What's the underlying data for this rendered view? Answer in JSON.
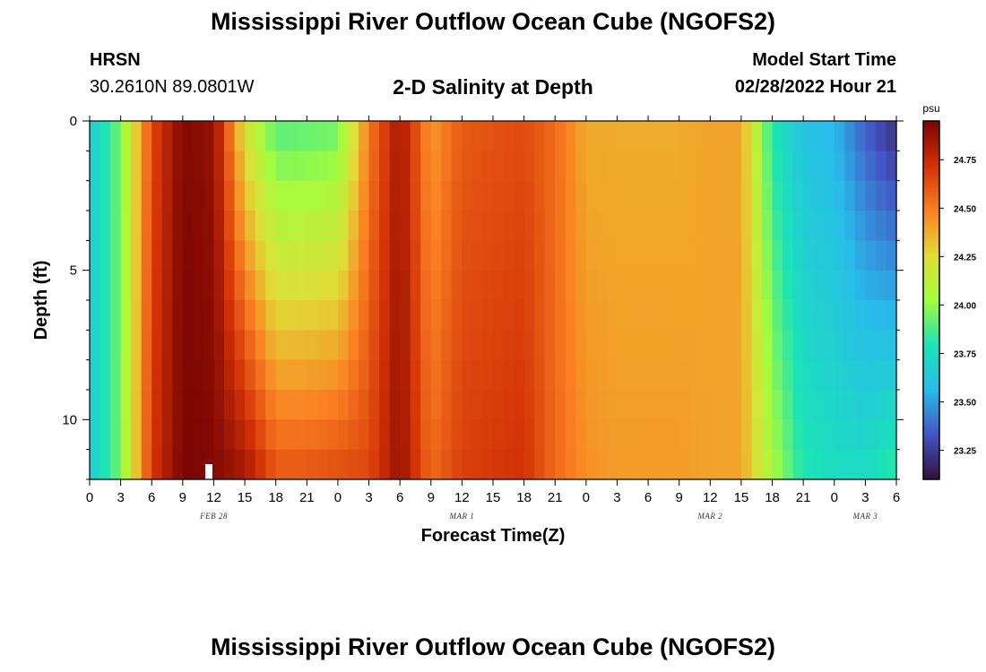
{
  "header": {
    "title": "Mississippi River Outflow Ocean Cube (NGOFS2)",
    "station_name": "HRSN",
    "station_coords": "30.2610N  89.0801W",
    "subtitle": "2-D Salinity at Depth",
    "model_start_label": "Model Start Time",
    "model_start_value": "02/28/2022 Hour 21"
  },
  "footer": {
    "title": "Mississippi River Outflow Ocean Cube (NGOFS2)"
  },
  "chart_data": {
    "type": "heatmap",
    "title": "2-D Salinity at Depth",
    "xlabel": "Forecast Time(Z)",
    "ylabel": "Depth (ft)",
    "x_tick_labels": [
      "0",
      "3",
      "6",
      "9",
      "12",
      "15",
      "18",
      "21",
      "0",
      "3",
      "6",
      "9",
      "12",
      "15",
      "18",
      "21",
      "0",
      "3",
      "6",
      "9",
      "12",
      "15",
      "18",
      "21",
      "0",
      "3",
      "6"
    ],
    "day_labels": [
      {
        "label": "FEB 28",
        "at_tick": 4
      },
      {
        "label": "MAR 1",
        "at_tick": 12
      },
      {
        "label": "MAR 2",
        "at_tick": 20
      },
      {
        "label": "MAR 3",
        "at_tick": 25
      }
    ],
    "x_range_hours": [
      0,
      78
    ],
    "y_tick_labels": [
      "0",
      "5",
      "10"
    ],
    "y_range_ft": [
      0,
      12
    ],
    "color_scale": {
      "unit": "psu",
      "min": 23.1,
      "max": 24.95,
      "ticks": [
        "23.25",
        "23.50",
        "23.75",
        "24.00",
        "24.25",
        "24.50",
        "24.75"
      ],
      "stops": [
        "#30123b",
        "#4454c4",
        "#28bceb",
        "#1ae4b6",
        "#a4fc3c",
        "#e1dd37",
        "#fb8022",
        "#d23105",
        "#7a0403"
      ]
    },
    "time_hours": [
      0,
      3,
      6,
      9,
      12,
      15,
      18,
      21,
      24,
      27,
      30,
      33,
      36,
      39,
      42,
      45,
      48,
      51,
      54,
      57,
      60,
      63,
      66,
      69,
      72,
      75,
      78
    ],
    "surface_salinity": [
      23.65,
      23.95,
      24.65,
      24.93,
      24.88,
      24.2,
      23.88,
      23.9,
      23.92,
      24.5,
      24.85,
      24.42,
      24.6,
      24.62,
      24.64,
      24.55,
      24.38,
      24.38,
      24.38,
      24.38,
      24.4,
      24.4,
      23.8,
      23.6,
      23.55,
      23.35,
      23.2
    ],
    "bottom_salinity": [
      23.65,
      23.95,
      24.7,
      24.95,
      24.93,
      24.85,
      24.62,
      24.62,
      24.65,
      24.65,
      24.88,
      24.55,
      24.68,
      24.7,
      24.72,
      24.55,
      24.45,
      24.42,
      24.42,
      24.42,
      24.4,
      24.4,
      24.05,
      23.8,
      23.75,
      23.75,
      23.85
    ]
  }
}
